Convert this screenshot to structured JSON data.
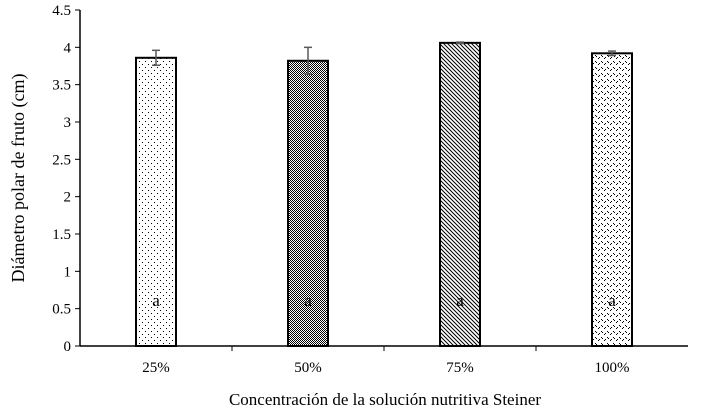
{
  "chart_data": {
    "type": "bar",
    "title": "",
    "xlabel": "Concentración de la solución nutritiva Steiner",
    "ylabel": "Diámetro polar de fruto (cm)",
    "categories": [
      "25%",
      "50%",
      "75%",
      "100%"
    ],
    "values": [
      3.86,
      3.82,
      4.06,
      3.92
    ],
    "errors": [
      0.1,
      0.18,
      0.01,
      0.03
    ],
    "labels": [
      "a",
      "a",
      "a",
      "a"
    ],
    "patterns": [
      "sparse-dots",
      "dense-checker",
      "diagonal-hatch",
      "dotted-diamonds"
    ],
    "ylim": [
      0,
      4.5
    ],
    "yticks": [
      "0",
      "0.5",
      "1",
      "1.5",
      "2",
      "2.5",
      "3",
      "3.5",
      "4",
      "4.5"
    ],
    "grid": false,
    "colors": {
      "bar_stroke": "#000000",
      "error_bar": "#595959"
    }
  }
}
